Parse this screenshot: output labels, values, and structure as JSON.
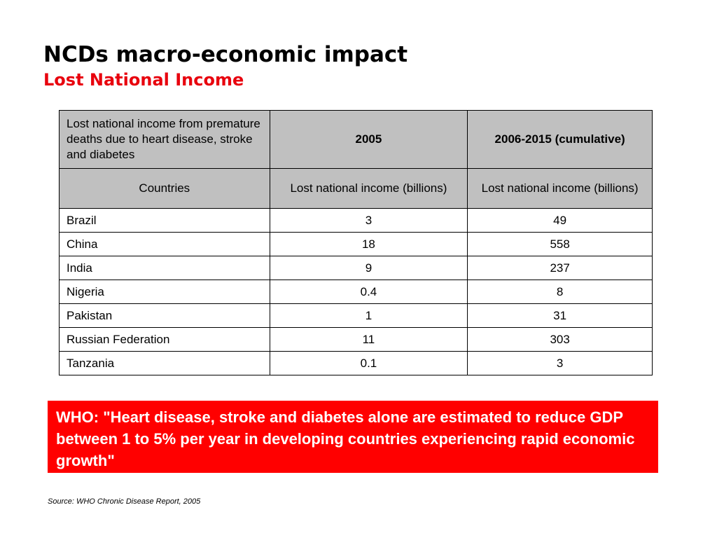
{
  "title": "NCDs macro-economic impact",
  "subtitle": "Lost National Income",
  "table": {
    "header_row_1": [
      "Lost national income from premature deaths due to heart disease, stroke and diabetes",
      "2005",
      "2006-2015 (cumulative)"
    ],
    "header_row_2": [
      "Countries",
      "Lost national income (billions)",
      "Lost national income (billions)"
    ],
    "rows": [
      [
        "Brazil",
        "3",
        "49"
      ],
      [
        "China",
        "18",
        "558"
      ],
      [
        "India",
        "9",
        "237"
      ],
      [
        "Nigeria",
        "0.4",
        "8"
      ],
      [
        "Pakistan",
        "1",
        "31"
      ],
      [
        "Russian Federation",
        "11",
        "303"
      ],
      [
        "Tanzania",
        "0.1",
        "3"
      ]
    ]
  },
  "quote": "WHO: \"Heart disease, stroke and diabetes alone are estimated to reduce GDP between 1 to 5% per year in developing countries experiencing rapid economic growth\"",
  "source": "Source: WHO Chronic Disease Report, 2005",
  "colors": {
    "accent_red": "#e8000d",
    "quote_background": "#ff0000",
    "header_gray": "#c0c0c0"
  }
}
